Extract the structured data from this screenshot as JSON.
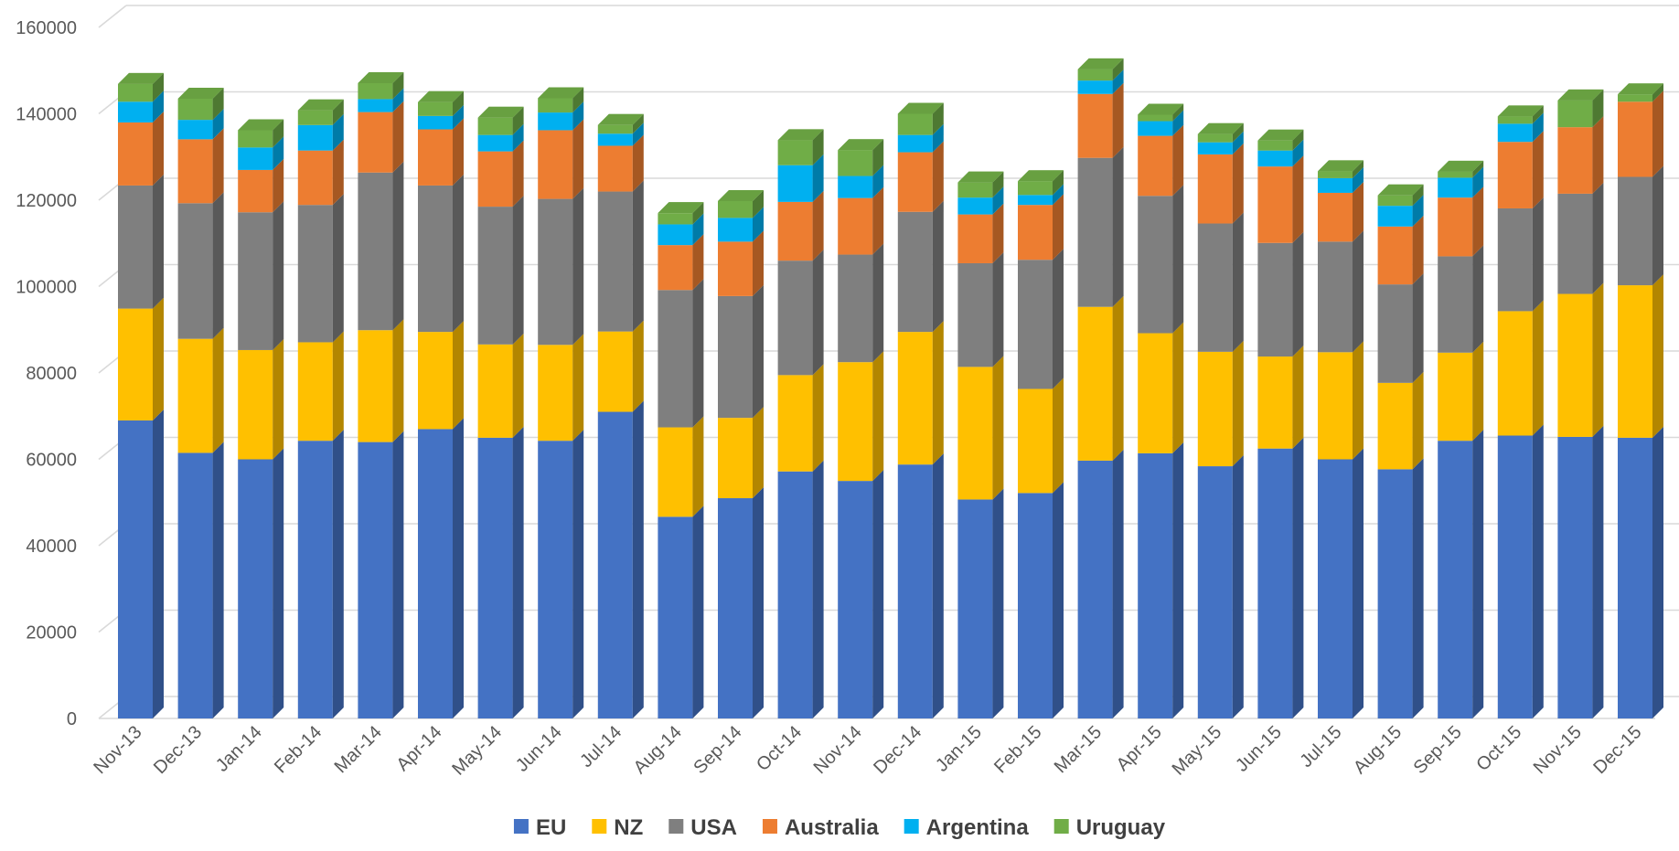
{
  "chart_data": {
    "type": "bar",
    "stacked": true,
    "style": "3d-column",
    "categories": [
      "Nov-13",
      "Dec-13",
      "Jan-14",
      "Feb-14",
      "Mar-14",
      "Apr-14",
      "May-14",
      "Jun-14",
      "Jul-14",
      "Aug-14",
      "Sep-14",
      "Oct-14",
      "Nov-14",
      "Dec-14",
      "Jan-15",
      "Feb-15",
      "Mar-15",
      "Apr-15",
      "May-15",
      "Jun-15",
      "Jul-15",
      "Aug-15",
      "Sep-15",
      "Oct-15",
      "Nov-15",
      "Dec-15"
    ],
    "ylim": [
      0,
      160000
    ],
    "yticks": [
      "0",
      "20000",
      "40000",
      "60000",
      "80000",
      "100000",
      "120000",
      "140000",
      "160000"
    ],
    "grid": true,
    "legend_position": "bottom",
    "series": [
      {
        "name": "EU",
        "color": "#4472C4",
        "values": [
          69000,
          61500,
          60000,
          64300,
          64000,
          67000,
          65000,
          64300,
          71000,
          46700,
          51000,
          57200,
          55000,
          58800,
          50700,
          52200,
          59700,
          61400,
          58400,
          62500,
          60000,
          57700,
          64300,
          65500,
          65200,
          65000
        ]
      },
      {
        "name": "NZ",
        "color": "#FFC000",
        "values": [
          25900,
          26400,
          25300,
          22800,
          25900,
          22500,
          21600,
          22200,
          18600,
          20700,
          18600,
          22300,
          27500,
          30700,
          30700,
          24100,
          35600,
          27800,
          26500,
          21300,
          24800,
          20000,
          20400,
          28800,
          33100,
          35300
        ]
      },
      {
        "name": "USA",
        "color": "#7F7F7F",
        "values": [
          28500,
          31400,
          31900,
          31800,
          36500,
          33900,
          31900,
          33800,
          32400,
          31800,
          28200,
          26500,
          24900,
          27800,
          24000,
          29900,
          34500,
          31800,
          29700,
          26300,
          25600,
          22800,
          22300,
          23800,
          23200,
          25100
        ]
      },
      {
        "name": "Australia",
        "color": "#ED7D31",
        "values": [
          14600,
          14800,
          9800,
          12600,
          14000,
          13000,
          12800,
          15900,
          10600,
          10400,
          12600,
          13600,
          13100,
          13800,
          11300,
          12700,
          14800,
          13900,
          16000,
          17700,
          11300,
          13400,
          13600,
          15400,
          15400,
          17400
        ]
      },
      {
        "name": "Argentina",
        "color": "#00B0F0",
        "values": [
          4800,
          4500,
          5200,
          5900,
          3000,
          3100,
          3800,
          4100,
          2800,
          4800,
          5500,
          8500,
          5100,
          4000,
          3900,
          2300,
          3100,
          3400,
          2800,
          3700,
          3400,
          4800,
          4600,
          4200,
          0,
          0
        ]
      },
      {
        "name": "Uruguay",
        "color": "#70AD47",
        "values": [
          4100,
          4900,
          4000,
          3400,
          3700,
          3200,
          4000,
          3300,
          2000,
          2600,
          3900,
          5800,
          6000,
          4900,
          3500,
          3200,
          2600,
          1500,
          1900,
          2300,
          1600,
          2400,
          1400,
          1700,
          6200,
          1700
        ]
      }
    ]
  }
}
